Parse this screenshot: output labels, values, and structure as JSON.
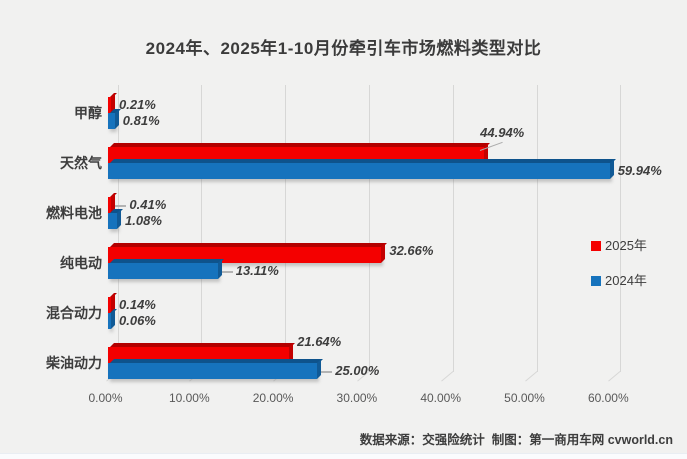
{
  "title": "2024年、2025年1-10月份牵引车市场燃料类型对比",
  "chart_data": {
    "type": "bar",
    "orientation": "horizontal",
    "title": "2024年、2025年1-10月份牵引车市场燃料类型对比",
    "categories": [
      "甲醇",
      "天然气",
      "燃料电池",
      "纯电动",
      "混合动力",
      "柴油动力"
    ],
    "series": [
      {
        "name": "2025年",
        "color": "#f40000",
        "values": [
          0.21,
          44.94,
          0.41,
          32.66,
          0.14,
          21.64
        ]
      },
      {
        "name": "2024年",
        "color": "#1673bd",
        "values": [
          0.81,
          59.94,
          1.08,
          13.11,
          0.06,
          25.0
        ]
      }
    ],
    "value_labels": [
      [
        "0.21%",
        "44.94%",
        "0.41%",
        "32.66%",
        "0.14%",
        "21.64%"
      ],
      [
        "0.81%",
        "59.94%",
        "1.08%",
        "13.11%",
        "0.06%",
        "25.00%"
      ]
    ],
    "value_suffix": "%",
    "x_ticks": [
      "0.00%",
      "10.00%",
      "20.00%",
      "30.00%",
      "40.00%",
      "50.00%",
      "60.00%"
    ],
    "xlim": [
      0,
      60
    ],
    "grid": true,
    "legend_position": "right",
    "xlabel": "",
    "ylabel": ""
  },
  "legend": {
    "items": [
      {
        "label": "2025年",
        "color": "#f40000"
      },
      {
        "label": "2024年",
        "color": "#1673bd"
      }
    ]
  },
  "footer": {
    "text": "数据来源：交强险统计  制图：第一商用车网 cvworld.cn"
  }
}
